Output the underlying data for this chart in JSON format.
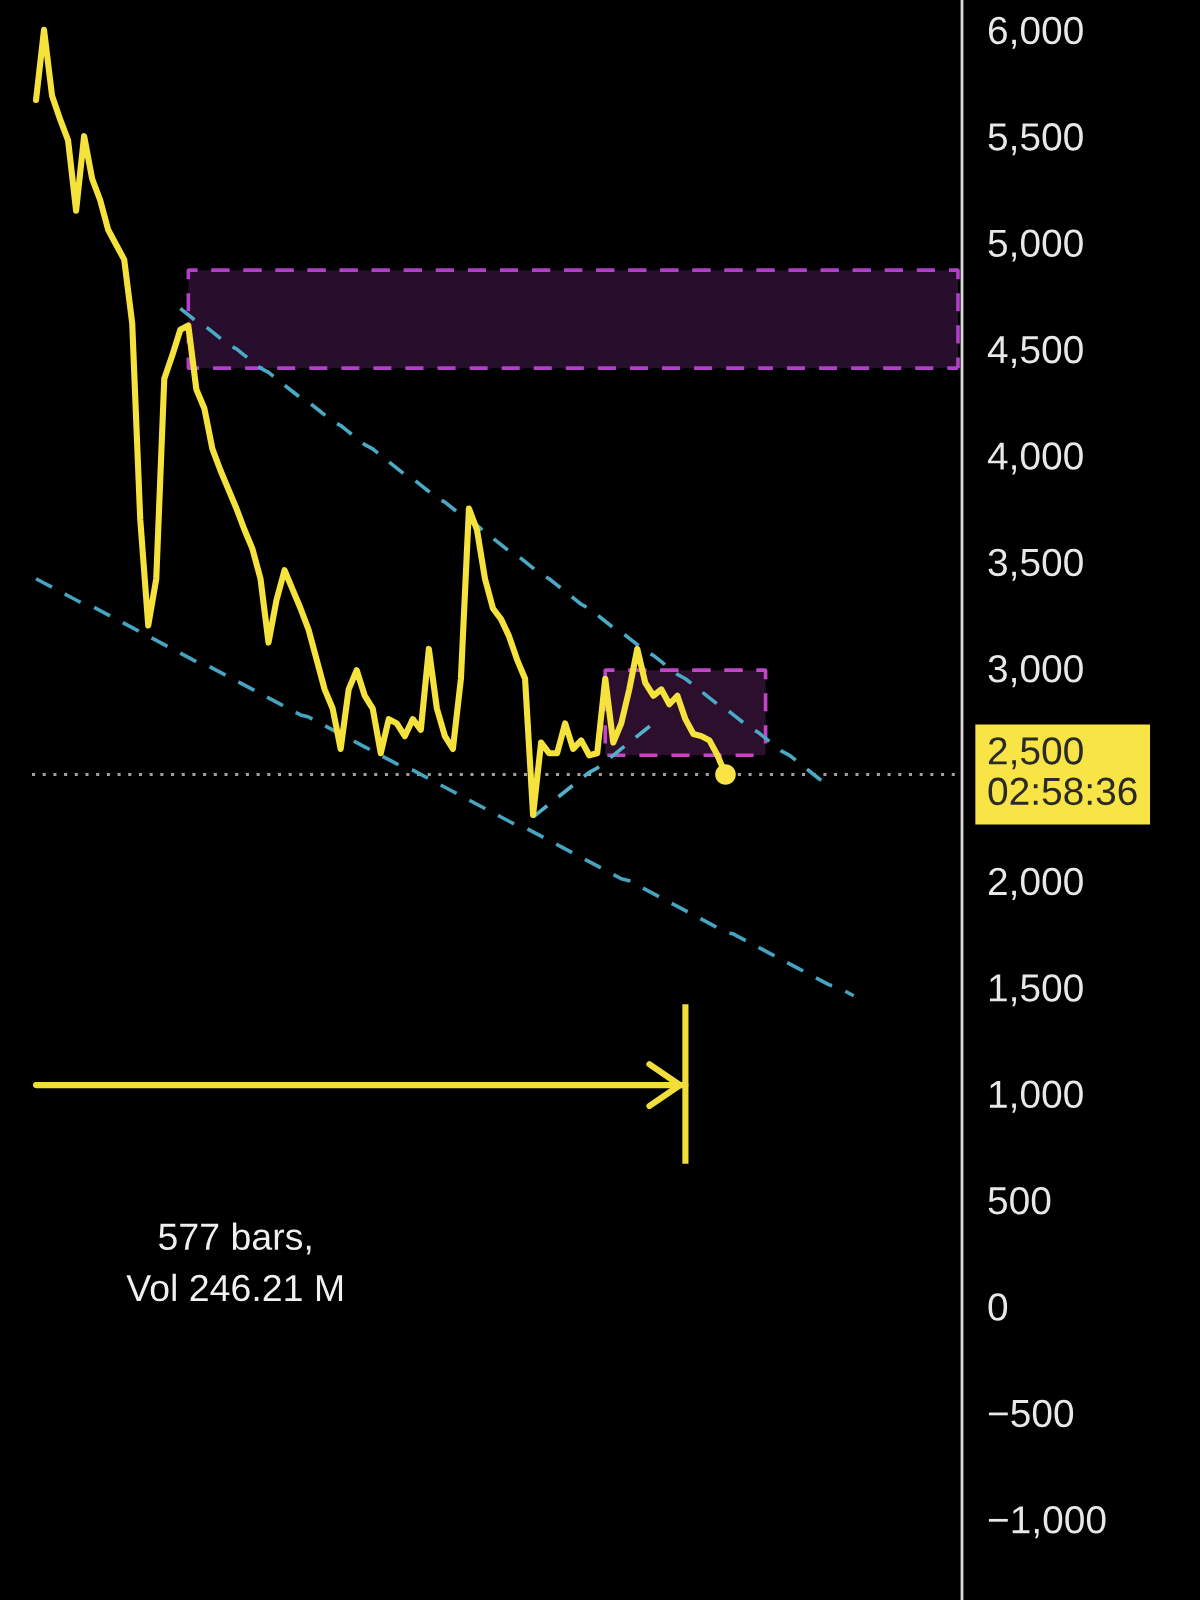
{
  "chart_data": {
    "type": "line",
    "categories": [
      null,
      null,
      null,
      null,
      null,
      null,
      null,
      null,
      null,
      null,
      null,
      null,
      null,
      null,
      null,
      null,
      null,
      null,
      null,
      null,
      null,
      null,
      null,
      null,
      null,
      null,
      null,
      null,
      null,
      null,
      null,
      null,
      null,
      null,
      null,
      null,
      null,
      null,
      null,
      null,
      null,
      null,
      null,
      null,
      null,
      null,
      null,
      null,
      null,
      null,
      null,
      null,
      null,
      null,
      null,
      null,
      null,
      null,
      null,
      null,
      null,
      null,
      null,
      null,
      null,
      null,
      null,
      null,
      null,
      null,
      null,
      null,
      null,
      null,
      null,
      null,
      null,
      null,
      null,
      null,
      null,
      null,
      null,
      null,
      null,
      null,
      null,
      null,
      null,
      null,
      null,
      null,
      null,
      null,
      null,
      null,
      null,
      null,
      null,
      null,
      null,
      null,
      null,
      null,
      null,
      null,
      null,
      null,
      null,
      null,
      null,
      null,
      null,
      null,
      null,
      null
    ],
    "series": [
      {
        "color": "#b040c8",
        "line_style": "dashed",
        "values": [
          null,
          null,
          null,
          null,
          null,
          null,
          null,
          null,
          null,
          null,
          null,
          null,
          null,
          null,
          null,
          null,
          null,
          null,
          null,
          4870,
          4870,
          4870,
          4870,
          4870,
          4870,
          4870,
          4870,
          4870,
          4870,
          4870,
          4870,
          4870,
          4870,
          4870,
          4870,
          4870,
          4870,
          4870,
          4870,
          4870,
          4870,
          4870,
          4870,
          4870,
          4870,
          4870,
          4870,
          4870,
          4870,
          4870,
          4870,
          4870,
          4870,
          4870,
          4870,
          4870,
          4870,
          4870,
          4870,
          4870,
          4870,
          4870,
          4870,
          4870,
          4870,
          4870,
          4870,
          4870,
          4870,
          4870,
          4870,
          4870,
          4870,
          4870,
          4870,
          4870,
          4870,
          4870,
          4870,
          4870,
          4870,
          4870,
          4870,
          4870,
          4870,
          4870,
          4870,
          4870,
          4870,
          4870,
          4870,
          4870,
          4870,
          4870,
          4870,
          4870,
          4870,
          4870,
          4870,
          4870,
          4870,
          4870,
          4870,
          4870,
          4870,
          4870,
          4870,
          4870,
          4870,
          4870,
          4870,
          4870,
          4870,
          4870,
          4870,
          4870
        ],
        "lower": [
          null,
          null,
          null,
          null,
          null,
          null,
          null,
          null,
          null,
          null,
          null,
          null,
          null,
          null,
          null,
          null,
          null,
          null,
          null,
          4410,
          4410,
          4410,
          4410,
          4410,
          4410,
          4410,
          4410,
          4410,
          4410,
          4410,
          4410,
          4410,
          4410,
          4410,
          4410,
          4410,
          4410,
          4410,
          4410,
          4410,
          4410,
          4410,
          4410,
          4410,
          4410,
          4410,
          4410,
          4410,
          4410,
          4410,
          4410,
          4410,
          4410,
          4410,
          4410,
          4410,
          4410,
          4410,
          4410,
          4410,
          4410,
          4410,
          4410,
          4410,
          4410,
          4410,
          4410,
          4410,
          4410,
          4410,
          4410,
          4410,
          4410,
          4410,
          4410,
          4410,
          4410,
          4410,
          4410,
          4410,
          4410,
          4410,
          4410,
          4410,
          4410,
          4410,
          4410,
          4410,
          4410,
          4410,
          4410,
          4410,
          4410,
          4410,
          4410,
          4410,
          4410,
          4410,
          4410,
          4410,
          4410,
          4410,
          4410,
          4410,
          4410,
          4410,
          4410,
          4410,
          4410,
          4410,
          4410,
          4410,
          4410,
          4410,
          4410,
          4410
        ],
        "upper": [
          null,
          null,
          null,
          null,
          null,
          null,
          null,
          null,
          null,
          null,
          null,
          null,
          null,
          null,
          null,
          null,
          null,
          null,
          null,
          4870,
          4870,
          4870,
          4870,
          4870,
          4870,
          4870,
          4870,
          4870,
          4870,
          4870,
          4870,
          4870,
          4870,
          4870,
          4870,
          4870,
          4870,
          4870,
          4870,
          4870,
          4870,
          4870,
          4870,
          4870,
          4870,
          4870,
          4870,
          4870,
          4870,
          4870,
          4870,
          4870,
          4870,
          4870,
          4870,
          4870,
          4870,
          4870,
          4870,
          4870,
          4870,
          4870,
          4870,
          4870,
          4870,
          4870,
          4870,
          4870,
          4870,
          4870,
          4870,
          4870,
          4870,
          4870,
          4870,
          4870,
          4870,
          4870,
          4870,
          4870,
          4870,
          4870,
          4870,
          4870,
          4870,
          4870,
          4870,
          4870,
          4870,
          4870,
          4870,
          4870,
          4870,
          4870,
          4870,
          4870,
          4870,
          4870,
          4870,
          4870,
          4870,
          4870,
          4870,
          4870,
          4870,
          4870,
          4870,
          4870,
          4870,
          4870,
          4870,
          4870,
          4870,
          4870,
          4870,
          4870
        ]
      },
      {
        "color": "#c246c8",
        "line_style": "dashed",
        "values": [
          null,
          null,
          null,
          null,
          null,
          null,
          null,
          null,
          null,
          null,
          null,
          null,
          null,
          null,
          null,
          null,
          null,
          null,
          null,
          null,
          null,
          null,
          null,
          null,
          null,
          null,
          null,
          null,
          null,
          null,
          null,
          null,
          null,
          null,
          null,
          null,
          null,
          null,
          null,
          null,
          null,
          null,
          null,
          null,
          null,
          null,
          null,
          null,
          null,
          null,
          null,
          null,
          null,
          null,
          null,
          null,
          null,
          null,
          null,
          null,
          null,
          null,
          null,
          null,
          null,
          null,
          null,
          null,
          null,
          null,
          null,
          2990,
          2990,
          2990,
          2990,
          2990,
          2990,
          2990,
          2990,
          2990,
          2990,
          2990,
          2990,
          2990,
          2990,
          2990,
          2990,
          2990,
          2990,
          2990,
          2990,
          2990,
          null,
          null,
          null,
          null,
          null,
          null,
          null,
          null,
          null,
          null,
          null,
          null,
          null,
          null,
          null,
          null,
          null,
          null,
          null,
          null,
          null,
          null,
          null,
          null
        ],
        "lower": [
          null,
          null,
          null,
          null,
          null,
          null,
          null,
          null,
          null,
          null,
          null,
          null,
          null,
          null,
          null,
          null,
          null,
          null,
          null,
          null,
          null,
          null,
          null,
          null,
          null,
          null,
          null,
          null,
          null,
          null,
          null,
          null,
          null,
          null,
          null,
          null,
          null,
          null,
          null,
          null,
          null,
          null,
          null,
          null,
          null,
          null,
          null,
          null,
          null,
          null,
          null,
          null,
          null,
          null,
          null,
          null,
          null,
          null,
          null,
          null,
          null,
          null,
          null,
          null,
          null,
          null,
          null,
          null,
          null,
          null,
          null,
          2590,
          2590,
          2590,
          2590,
          2590,
          2590,
          2590,
          2590,
          2590,
          2590,
          2590,
          2590,
          2590,
          2590,
          2590,
          2590,
          2590,
          2590,
          2590,
          2590,
          2590,
          null,
          null,
          null,
          null,
          null,
          null,
          null,
          null,
          null,
          null,
          null,
          null,
          null,
          null,
          null,
          null,
          null,
          null,
          null,
          null,
          null,
          null,
          null,
          null
        ],
        "upper": [
          null,
          null,
          null,
          null,
          null,
          null,
          null,
          null,
          null,
          null,
          null,
          null,
          null,
          null,
          null,
          null,
          null,
          null,
          null,
          null,
          null,
          null,
          null,
          null,
          null,
          null,
          null,
          null,
          null,
          null,
          null,
          null,
          null,
          null,
          null,
          null,
          null,
          null,
          null,
          null,
          null,
          null,
          null,
          null,
          null,
          null,
          null,
          null,
          null,
          null,
          null,
          null,
          null,
          null,
          null,
          null,
          null,
          null,
          null,
          null,
          null,
          null,
          null,
          null,
          null,
          null,
          null,
          null,
          null,
          null,
          null,
          2990,
          2990,
          2990,
          2990,
          2990,
          2990,
          2990,
          2990,
          2990,
          2990,
          2990,
          2990,
          2990,
          2990,
          2990,
          2990,
          2990,
          2990,
          2990,
          2990,
          2990,
          null,
          null,
          null,
          null,
          null,
          null,
          null,
          null,
          null,
          null,
          null,
          null,
          null,
          null,
          null,
          null,
          null,
          null,
          null,
          null,
          null,
          null,
          null,
          null
        ]
      },
      {
        "color": "#4aa9c4",
        "line_style": "dashed",
        "values": [
          null,
          null,
          null,
          null,
          null,
          null,
          null,
          null,
          null,
          null,
          null,
          null,
          null,
          null,
          null,
          null,
          null,
          null,
          4690,
          4660,
          4630,
          4610,
          4580,
          4550,
          4520,
          4500,
          4470,
          4440,
          4410,
          4390,
          4360,
          4330,
          4300,
          4270,
          4250,
          4220,
          4190,
          4160,
          4140,
          4110,
          4080,
          4050,
          4030,
          4000,
          3970,
          3940,
          3910,
          3890,
          3860,
          3830,
          3800,
          3780,
          3750,
          3720,
          3690,
          3670,
          3640,
          3610,
          3580,
          3550,
          3530,
          3500,
          3470,
          3440,
          3420,
          3390,
          3360,
          3330,
          3300,
          3280,
          3250,
          3220,
          3190,
          3170,
          3140,
          3110,
          3080,
          3060,
          3030,
          3000,
          2970,
          2950,
          2920,
          2890,
          2860,
          2830,
          2810,
          2780,
          2750,
          2720,
          2700,
          2670,
          2640,
          2610,
          2590,
          2560,
          2530,
          2500,
          2470,
          null,
          null,
          null,
          null,
          null,
          null,
          null,
          null,
          null,
          null,
          null,
          null,
          null,
          null,
          null,
          null,
          null
        ]
      },
      {
        "color": "#46a4c0",
        "line_style": "dashed",
        "values": [
          3420,
          3400,
          3380,
          3360,
          3340,
          3320,
          3300,
          3290,
          3270,
          3250,
          3230,
          3210,
          3190,
          3170,
          3150,
          3130,
          3110,
          3090,
          3070,
          3050,
          3030,
          3020,
          3000,
          2980,
          2960,
          2940,
          2920,
          2900,
          2880,
          2860,
          2840,
          2820,
          2800,
          2780,
          2770,
          2750,
          2730,
          2710,
          2690,
          2670,
          2650,
          2630,
          2610,
          2590,
          2570,
          2550,
          2530,
          2520,
          2500,
          2480,
          2460,
          2440,
          2420,
          2400,
          2380,
          2360,
          2340,
          2320,
          2300,
          2280,
          2260,
          2250,
          2230,
          2210,
          2190,
          2170,
          2150,
          2130,
          2110,
          2090,
          2070,
          2050,
          2030,
          2010,
          2000,
          1980,
          1960,
          1940,
          1920,
          1900,
          1880,
          1860,
          1840,
          1820,
          1800,
          1780,
          1760,
          1750,
          1730,
          1710,
          1690,
          1670,
          1650,
          1630,
          1610,
          1590,
          1570,
          1550,
          1530,
          1510,
          1500,
          1480,
          1460,
          null,
          null,
          null,
          null,
          null,
          null,
          null,
          null,
          null,
          null,
          null,
          null,
          null
        ]
      },
      {
        "color": "#52b0c8",
        "line_style": "dashed",
        "values": [
          null,
          null,
          null,
          null,
          null,
          null,
          null,
          null,
          null,
          null,
          null,
          null,
          null,
          null,
          null,
          null,
          null,
          null,
          null,
          null,
          null,
          null,
          null,
          null,
          null,
          null,
          null,
          null,
          null,
          null,
          null,
          null,
          null,
          null,
          null,
          null,
          null,
          null,
          null,
          null,
          null,
          null,
          null,
          null,
          null,
          null,
          null,
          null,
          null,
          null,
          null,
          null,
          null,
          null,
          null,
          null,
          null,
          null,
          null,
          null,
          null,
          null,
          2300,
          2330,
          2360,
          2390,
          2420,
          2450,
          2480,
          2510,
          2530,
          2560,
          2590,
          2620,
          2650,
          2680,
          2710,
          2740,
          null,
          null,
          null,
          null,
          null,
          null,
          null,
          null,
          null,
          null,
          null,
          null,
          null,
          null,
          null,
          null,
          null,
          null,
          null,
          null,
          null,
          null,
          null,
          null,
          null,
          null,
          null,
          null,
          null,
          null,
          null,
          null,
          null,
          null,
          null,
          null,
          null,
          null
        ]
      },
      {
        "color": "#f2de3a",
        "line_style": "solid",
        "values": [
          1040,
          1040,
          1040,
          1040,
          1040,
          1040,
          1040,
          1040,
          1040,
          1040,
          1040,
          1040,
          1040,
          1040,
          1040,
          1040,
          1040,
          1040,
          1040,
          1040,
          1040,
          1040,
          1040,
          1040,
          1040,
          1040,
          1040,
          1040,
          1040,
          1040,
          1040,
          1040,
          1040,
          1040,
          1040,
          1040,
          1040,
          1040,
          1040,
          1040,
          1040,
          1040,
          1040,
          1040,
          1040,
          1040,
          1040,
          1040,
          1040,
          1040,
          1040,
          1040,
          1040,
          1040,
          1040,
          1040,
          1040,
          1040,
          1040,
          1040,
          1040,
          1040,
          1040,
          1040,
          1040,
          1040,
          1040,
          1040,
          1040,
          1040,
          1040,
          1040,
          1040,
          1040,
          1040,
          1040,
          1040,
          1040,
          1040,
          1040,
          1040,
          1040,
          null,
          null,
          null,
          null,
          null,
          null,
          null,
          null,
          null,
          null,
          null,
          null,
          null,
          null,
          null,
          null,
          null,
          null,
          null,
          null,
          null,
          null,
          null,
          null,
          null,
          null,
          null,
          null,
          null,
          null,
          null,
          null,
          null,
          null
        ],
        "errors": [
          null,
          null,
          null,
          null,
          null,
          null,
          null,
          null,
          null,
          null,
          null,
          null,
          null,
          null,
          null,
          null,
          null,
          null,
          null,
          null,
          null,
          null,
          null,
          null,
          null,
          null,
          null,
          null,
          null,
          null,
          null,
          null,
          null,
          null,
          null,
          null,
          null,
          null,
          null,
          null,
          null,
          null,
          null,
          null,
          null,
          null,
          null,
          null,
          null,
          null,
          null,
          null,
          null,
          null,
          null,
          null,
          null,
          null,
          null,
          null,
          null,
          null,
          null,
          null,
          null,
          null,
          null,
          null,
          null,
          null,
          null,
          null,
          null,
          null,
          null,
          null,
          null,
          null,
          null,
          null,
          null,
          [
            670,
            1420
          ],
          null,
          null,
          null,
          null,
          null,
          null,
          null,
          null,
          null,
          null,
          null,
          null,
          null,
          null,
          null,
          null,
          null,
          null,
          null,
          null,
          null,
          null,
          null,
          null,
          null,
          null,
          null,
          null,
          null,
          null,
          null,
          null,
          null,
          null
        ]
      },
      {
        "color": "#f5e23c",
        "line_style": "solid",
        "values": [
          5670,
          6000,
          5690,
          5580,
          5480,
          5150,
          5500,
          5300,
          5200,
          5060,
          4990,
          4920,
          4620,
          3700,
          3200,
          3420,
          4360,
          4470,
          4590,
          4610,
          4310,
          4220,
          4030,
          3930,
          3840,
          3750,
          3650,
          3560,
          3420,
          3120,
          3320,
          3460,
          3370,
          3280,
          3180,
          3040,
          2900,
          2810,
          2620,
          2900,
          2990,
          2870,
          2810,
          2600,
          2760,
          2740,
          2680,
          2760,
          2710,
          3090,
          2810,
          2680,
          2620,
          2950,
          3750,
          3650,
          3420,
          3280,
          3230,
          3150,
          3040,
          2950,
          2310,
          2650,
          2600,
          2600,
          2740,
          2620,
          2660,
          2590,
          2600,
          2950,
          2650,
          2740,
          2900,
          3090,
          2930,
          2870,
          2900,
          2830,
          2870,
          2760,
          2690,
          2680,
          2660,
          2590,
          2500,
          null,
          null,
          null,
          null,
          null,
          null,
          null,
          null,
          null,
          null,
          null,
          null,
          null,
          null,
          null,
          null,
          null,
          null,
          null,
          null,
          null,
          null,
          null,
          null,
          null,
          null,
          null,
          null,
          null
        ]
      },
      {
        "type": "scatter",
        "color": "#f8e444",
        "marker": "circle",
        "values": [
          null,
          null,
          null,
          null,
          null,
          null,
          null,
          null,
          null,
          null,
          null,
          null,
          null,
          null,
          null,
          null,
          null,
          null,
          null,
          null,
          null,
          null,
          null,
          null,
          null,
          null,
          null,
          null,
          null,
          null,
          null,
          null,
          null,
          null,
          null,
          null,
          null,
          null,
          null,
          null,
          null,
          null,
          null,
          null,
          null,
          null,
          null,
          null,
          null,
          null,
          null,
          null,
          null,
          null,
          null,
          null,
          null,
          null,
          null,
          null,
          null,
          null,
          null,
          null,
          null,
          null,
          null,
          null,
          null,
          null,
          null,
          null,
          null,
          null,
          null,
          null,
          null,
          null,
          null,
          null,
          null,
          null,
          null,
          null,
          null,
          null,
          2500,
          null,
          null,
          null,
          null,
          null,
          null,
          null,
          null,
          null,
          null,
          null,
          null,
          null,
          null,
          null,
          null,
          null,
          null,
          null,
          null,
          null,
          null,
          null,
          null,
          null,
          null,
          null,
          null,
          null
        ]
      }
    ],
    "ylim": [
      -1380,
      6140
    ],
    "yticks": [
      {
        "value": 6000,
        "label": "6,000"
      },
      {
        "value": 5500,
        "label": "5,500"
      },
      {
        "value": 5000,
        "label": "5,000"
      },
      {
        "value": 4500,
        "label": "4,500"
      },
      {
        "value": 4000,
        "label": "4,000"
      },
      {
        "value": 3500,
        "label": "3,500"
      },
      {
        "value": 3000,
        "label": "3,000"
      },
      {
        "value": 2000,
        "label": "2,000"
      },
      {
        "value": 1500,
        "label": "1,500"
      },
      {
        "value": 1000,
        "label": "1,000"
      },
      500,
      0,
      {
        "value": -500,
        "label": "−500"
      },
      {
        "value": -1000,
        "label": "−1,000"
      }
    ],
    "tick_labels": "y",
    "ref_lines": [
      {
        "axis": "y",
        "value": 2500,
        "label": "2,500\n02:58:36",
        "color": "#a0a0a0",
        "line_style": "dotted"
      }
    ],
    "annotations": [
      "577 bars,\nVol 246.21 M"
    ]
  }
}
